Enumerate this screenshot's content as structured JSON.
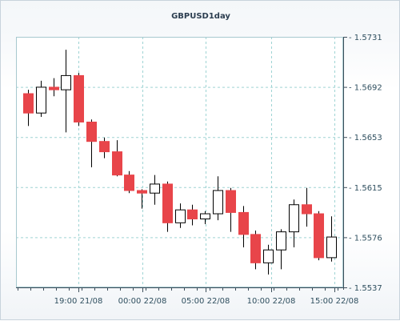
{
  "chart_data": {
    "type": "candlestick",
    "title": "GBPUSD1day",
    "y_ticks": [
      "1.5731",
      "1.5692",
      "1.5653",
      "1.5615",
      "1.5576",
      "1.5537"
    ],
    "ylim": [
      1.5537,
      1.5731
    ],
    "x_ticks": [
      "19:00 21/08",
      "00:00 22/08",
      "05:00 22/08",
      "10:00 22/08",
      "15:00 22/08"
    ],
    "grid": true,
    "colors": {
      "bearish": "#e8454a",
      "bullish": "#ffffff",
      "wick": "#000000",
      "grid": "#9fd4d4",
      "axis": "#3d4f5c"
    },
    "candles": [
      {
        "o": 1.5687,
        "h": 1.569,
        "l": 1.5662,
        "c": 1.5672
      },
      {
        "o": 1.5672,
        "h": 1.5697,
        "l": 1.5669,
        "c": 1.5692
      },
      {
        "o": 1.5692,
        "h": 1.5699,
        "l": 1.5685,
        "c": 1.569
      },
      {
        "o": 1.569,
        "h": 1.5721,
        "l": 1.5657,
        "c": 1.5701
      },
      {
        "o": 1.5701,
        "h": 1.5703,
        "l": 1.5662,
        "c": 1.5665
      },
      {
        "o": 1.5665,
        "h": 1.5667,
        "l": 1.563,
        "c": 1.565
      },
      {
        "o": 1.565,
        "h": 1.5653,
        "l": 1.5637,
        "c": 1.5642
      },
      {
        "o": 1.5642,
        "h": 1.5651,
        "l": 1.5623,
        "c": 1.5624
      },
      {
        "o": 1.5624,
        "h": 1.5627,
        "l": 1.561,
        "c": 1.5612
      },
      {
        "o": 1.5612,
        "h": 1.5613,
        "l": 1.5598,
        "c": 1.561
      },
      {
        "o": 1.561,
        "h": 1.5624,
        "l": 1.5601,
        "c": 1.5617
      },
      {
        "o": 1.5617,
        "h": 1.5619,
        "l": 1.558,
        "c": 1.5587
      },
      {
        "o": 1.5587,
        "h": 1.5602,
        "l": 1.5583,
        "c": 1.5597
      },
      {
        "o": 1.5597,
        "h": 1.5601,
        "l": 1.5585,
        "c": 1.559
      },
      {
        "o": 1.559,
        "h": 1.5596,
        "l": 1.5586,
        "c": 1.5594
      },
      {
        "o": 1.5594,
        "h": 1.5623,
        "l": 1.5589,
        "c": 1.5612
      },
      {
        "o": 1.5612,
        "h": 1.5614,
        "l": 1.558,
        "c": 1.5595
      },
      {
        "o": 1.5595,
        "h": 1.56,
        "l": 1.5568,
        "c": 1.5578
      },
      {
        "o": 1.5578,
        "h": 1.5581,
        "l": 1.5551,
        "c": 1.5556
      },
      {
        "o": 1.5556,
        "h": 1.557,
        "l": 1.5547,
        "c": 1.5566
      },
      {
        "o": 1.5566,
        "h": 1.5582,
        "l": 1.5551,
        "c": 1.558
      },
      {
        "o": 1.558,
        "h": 1.5605,
        "l": 1.5568,
        "c": 1.5601
      },
      {
        "o": 1.5601,
        "h": 1.5614,
        "l": 1.5584,
        "c": 1.5594
      },
      {
        "o": 1.5594,
        "h": 1.5596,
        "l": 1.5558,
        "c": 1.556
      },
      {
        "o": 1.556,
        "h": 1.5592,
        "l": 1.5557,
        "c": 1.5576
      }
    ]
  }
}
